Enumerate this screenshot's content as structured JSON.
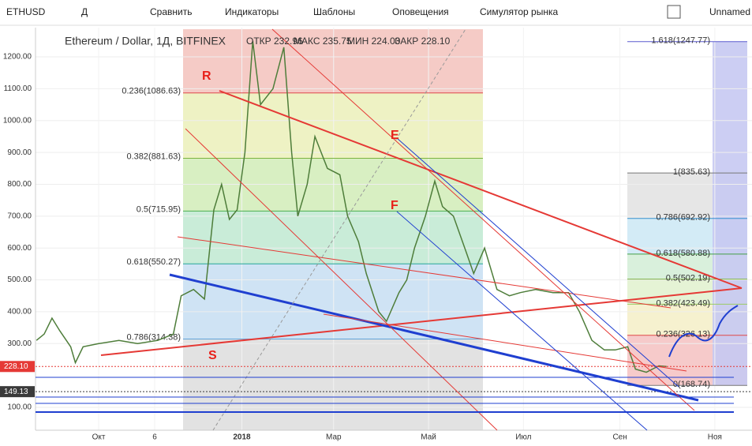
{
  "toolbar": {
    "symbol": "ETHUSD",
    "interval": "Д",
    "items": [
      "Сравнить",
      "Индикаторы",
      "Шаблоны",
      "Оповещения",
      "Симулятор рынка"
    ],
    "layout_name": "Unnamed"
  },
  "chart_data": {
    "type": "line",
    "title": "Ethereum / Dollar, 1Д, BITFINEX",
    "ohlc": [
      "ОТКР 232.96",
      "МАКС 235.75",
      "МИН 224.00",
      "ЗАКР 228.10"
    ],
    "series": [
      {
        "name": "ETHUSD",
        "color": "#4e7d3a",
        "x": [
          -10,
          -5,
          0,
          5,
          12,
          15,
          20,
          30,
          43,
          55,
          68,
          78,
          83,
          91,
          98,
          104,
          109,
          114,
          119,
          124,
          129,
          134,
          142,
          149,
          154,
          158,
          164,
          169,
          177,
          185,
          190,
          197,
          202,
          210,
          215,
          223,
          228,
          233,
          240,
          246,
          251,
          258,
          266,
          271,
          278,
          286,
          294,
          301,
          311,
          322,
          332,
          339,
          347,
          355,
          362,
          370,
          375,
          382,
          390,
          395
        ],
        "values": [
          310,
          330,
          380,
          340,
          290,
          240,
          290,
          300,
          310,
          300,
          310,
          330,
          450,
          470,
          440,
          720,
          800,
          690,
          720,
          900,
          1250,
          1050,
          1100,
          1230,
          900,
          700,
          800,
          950,
          850,
          830,
          700,
          620,
          520,
          400,
          370,
          460,
          500,
          600,
          700,
          810,
          730,
          700,
          590,
          520,
          600,
          470,
          450,
          460,
          470,
          460,
          460,
          400,
          310,
          280,
          280,
          290,
          220,
          210,
          230,
          228.1
        ]
      }
    ],
    "xlim": [
      -10.6,
      449.9
    ],
    "ylim": [
      28.1,
      1291.8
    ],
    "xticks": [
      {
        "value": 30,
        "label": "Окт"
      },
      {
        "value": 66,
        "label": "6"
      },
      {
        "value": 122,
        "label": "2018"
      },
      {
        "value": 181,
        "label": "Мар"
      },
      {
        "value": 242,
        "label": "Май"
      },
      {
        "value": 303,
        "label": "Июл"
      },
      {
        "value": 365,
        "label": "Сен"
      },
      {
        "value": 426,
        "label": "Ноя"
      }
    ],
    "yticks": [
      {
        "value": 100,
        "label": "100.00"
      },
      {
        "value": 300,
        "label": "300.00"
      },
      {
        "value": 400,
        "label": "400.00"
      },
      {
        "value": 500,
        "label": "500.00"
      },
      {
        "value": 600,
        "label": "600.00"
      },
      {
        "value": 700,
        "label": "700.00"
      },
      {
        "value": 800,
        "label": "800.00"
      },
      {
        "value": 900,
        "label": "900.00"
      },
      {
        "value": 1000,
        "label": "1000.00"
      },
      {
        "value": 1100,
        "label": "1100.00"
      },
      {
        "value": 1200,
        "label": "1200.00"
      }
    ],
    "price_markers": [
      {
        "value": 228.1,
        "label": "228.10",
        "color": "#e53935"
      },
      {
        "value": 149.13,
        "label": "149.13",
        "color": "#3a3a3a"
      }
    ],
    "fib_left": [
      {
        "label": "0.236(1086.63)",
        "price": 1086.63
      },
      {
        "label": "0.382(881.63)",
        "price": 881.63
      },
      {
        "label": "0.5(715.95)",
        "price": 715.95
      },
      {
        "label": "0.618(550.27)",
        "price": 550.27
      },
      {
        "label": "0.786(314.38)",
        "price": 314.38
      }
    ],
    "fib_right": [
      {
        "label": "1.618(1247.77)",
        "price": 1247.77
      },
      {
        "label": "1(835.63)",
        "price": 835.63
      },
      {
        "label": "0.786(692.92)",
        "price": 692.92
      },
      {
        "label": "0.618(580.88)",
        "price": 580.88
      },
      {
        "label": "0.5(502.19)",
        "price": 502.19
      },
      {
        "label": "0.382(423.49)",
        "price": 423.49
      },
      {
        "label": "0.236(326.13)",
        "price": 326.13
      },
      {
        "label": "0(168.74)",
        "price": 168.74
      }
    ],
    "annotations": [
      "R",
      "S",
      "E",
      "F"
    ]
  }
}
